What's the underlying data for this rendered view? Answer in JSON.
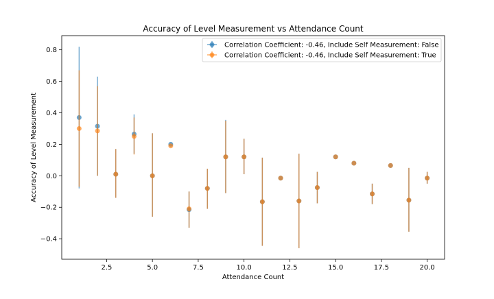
{
  "chart_data": {
    "type": "scatter",
    "title": "Accuracy of Level Measurement vs Attendance Count",
    "xlabel": "Attendance Count",
    "ylabel": "Accuracy of Level Measurement",
    "xlim": [
      0.05,
      20.95
    ],
    "ylim": [
      -0.53,
      0.89
    ],
    "xticks": [
      2.5,
      5.0,
      7.5,
      10.0,
      12.5,
      15.0,
      17.5,
      20.0
    ],
    "xtick_labels": [
      "2.5",
      "5.0",
      "7.5",
      "10.0",
      "12.5",
      "15.0",
      "17.5",
      "20.0"
    ],
    "yticks": [
      -0.4,
      -0.2,
      0.0,
      0.2,
      0.4,
      0.6,
      0.8
    ],
    "ytick_labels": [
      "−0.4",
      "−0.2",
      "0.0",
      "0.2",
      "0.4",
      "0.6",
      "0.8"
    ],
    "grid": false,
    "legend_position": "top-right",
    "series": [
      {
        "name": "Correlation Coefficient: -0.46, Include Self Measurement: False",
        "color": "#1f77b4",
        "points": [
          {
            "x": 1,
            "y": 0.37,
            "lo": -0.08,
            "hi": 0.82
          },
          {
            "x": 2,
            "y": 0.315,
            "lo": 0.0,
            "hi": 0.63
          },
          {
            "x": 3,
            "y": 0.01,
            "lo": -0.14,
            "hi": 0.17
          },
          {
            "x": 4,
            "y": 0.265,
            "lo": 0.14,
            "hi": 0.39
          },
          {
            "x": 5,
            "y": 0.0,
            "lo": -0.26,
            "hi": 0.27
          },
          {
            "x": 6,
            "y": 0.2,
            "lo": 0.2,
            "hi": 0.2
          },
          {
            "x": 7,
            "y": -0.215,
            "lo": -0.33,
            "hi": -0.1
          },
          {
            "x": 8,
            "y": -0.08,
            "lo": -0.21,
            "hi": 0.045
          },
          {
            "x": 9,
            "y": 0.12,
            "lo": -0.11,
            "hi": 0.355
          },
          {
            "x": 10,
            "y": 0.12,
            "lo": 0.01,
            "hi": 0.235
          },
          {
            "x": 11,
            "y": -0.165,
            "lo": -0.445,
            "hi": 0.115
          },
          {
            "x": 12,
            "y": -0.015,
            "lo": -0.015,
            "hi": -0.015
          },
          {
            "x": 13,
            "y": -0.16,
            "lo": -0.46,
            "hi": 0.14
          },
          {
            "x": 14,
            "y": -0.075,
            "lo": -0.175,
            "hi": 0.025
          },
          {
            "x": 15,
            "y": 0.12,
            "lo": 0.12,
            "hi": 0.12
          },
          {
            "x": 16,
            "y": 0.08,
            "lo": 0.08,
            "hi": 0.08
          },
          {
            "x": 17,
            "y": -0.115,
            "lo": -0.18,
            "hi": -0.05
          },
          {
            "x": 18,
            "y": 0.065,
            "lo": 0.065,
            "hi": 0.065
          },
          {
            "x": 19,
            "y": -0.155,
            "lo": -0.355,
            "hi": 0.05
          },
          {
            "x": 20,
            "y": -0.015,
            "lo": -0.05,
            "hi": 0.025
          }
        ]
      },
      {
        "name": "Correlation Coefficient: -0.46, Include Self Measurement: True",
        "color": "#ff7f0e",
        "points": [
          {
            "x": 1,
            "y": 0.3,
            "lo": -0.07,
            "hi": 0.67
          },
          {
            "x": 2,
            "y": 0.285,
            "lo": 0.0,
            "hi": 0.57
          },
          {
            "x": 3,
            "y": 0.01,
            "lo": -0.14,
            "hi": 0.17
          },
          {
            "x": 4,
            "y": 0.25,
            "lo": 0.135,
            "hi": 0.37
          },
          {
            "x": 5,
            "y": 0.0,
            "lo": -0.26,
            "hi": 0.27
          },
          {
            "x": 6,
            "y": 0.19,
            "lo": 0.19,
            "hi": 0.19
          },
          {
            "x": 7,
            "y": -0.21,
            "lo": -0.33,
            "hi": -0.1
          },
          {
            "x": 8,
            "y": -0.08,
            "lo": -0.21,
            "hi": 0.045
          },
          {
            "x": 9,
            "y": 0.12,
            "lo": -0.11,
            "hi": 0.35
          },
          {
            "x": 10,
            "y": 0.12,
            "lo": 0.01,
            "hi": 0.235
          },
          {
            "x": 11,
            "y": -0.165,
            "lo": -0.445,
            "hi": 0.115
          },
          {
            "x": 12,
            "y": -0.015,
            "lo": -0.015,
            "hi": -0.015
          },
          {
            "x": 13,
            "y": -0.16,
            "lo": -0.46,
            "hi": 0.14
          },
          {
            "x": 14,
            "y": -0.075,
            "lo": -0.175,
            "hi": 0.025
          },
          {
            "x": 15,
            "y": 0.12,
            "lo": 0.12,
            "hi": 0.12
          },
          {
            "x": 16,
            "y": 0.08,
            "lo": 0.08,
            "hi": 0.08
          },
          {
            "x": 17,
            "y": -0.115,
            "lo": -0.18,
            "hi": -0.05
          },
          {
            "x": 18,
            "y": 0.065,
            "lo": 0.065,
            "hi": 0.065
          },
          {
            "x": 19,
            "y": -0.155,
            "lo": -0.355,
            "hi": 0.05
          },
          {
            "x": 20,
            "y": -0.015,
            "lo": -0.05,
            "hi": 0.025
          }
        ]
      }
    ]
  }
}
